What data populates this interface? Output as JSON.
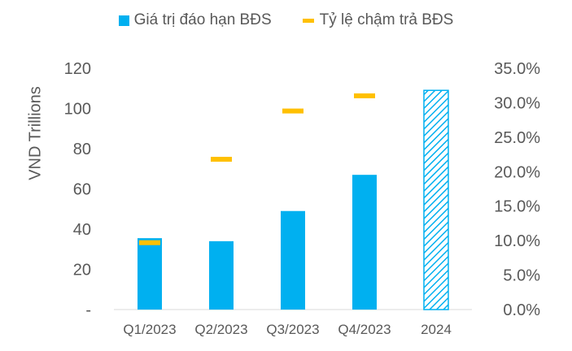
{
  "chart_data": {
    "type": "bar",
    "categories": [
      "Q1/2023",
      "Q2/2023",
      "Q3/2023",
      "Q4/2023",
      "2024"
    ],
    "series": [
      {
        "name": "Giá trị đáo hạn BĐS",
        "type": "bar",
        "axis": "left",
        "color": "#00B0F0",
        "values": [
          35.5,
          34,
          49,
          67,
          109
        ],
        "hatched": [
          false,
          false,
          false,
          false,
          true
        ]
      },
      {
        "name": "Tỷ lệ chậm trả BĐS",
        "type": "marker",
        "axis": "right",
        "color": "#FFC000",
        "values": [
          9.7,
          21.8,
          28.8,
          31.0,
          null
        ]
      }
    ],
    "ylabel": "VND Trillions",
    "ylim": [
      0,
      120
    ],
    "y_ticks": [
      "-",
      "20",
      "40",
      "60",
      "80",
      "100",
      "120"
    ],
    "y2lim": [
      0,
      35
    ],
    "y2_ticks": [
      "0.0%",
      "5.0%",
      "10.0%",
      "15.0%",
      "20.0%",
      "25.0%",
      "30.0%",
      "35.0%"
    ],
    "grid": false,
    "legend_position": "top"
  }
}
